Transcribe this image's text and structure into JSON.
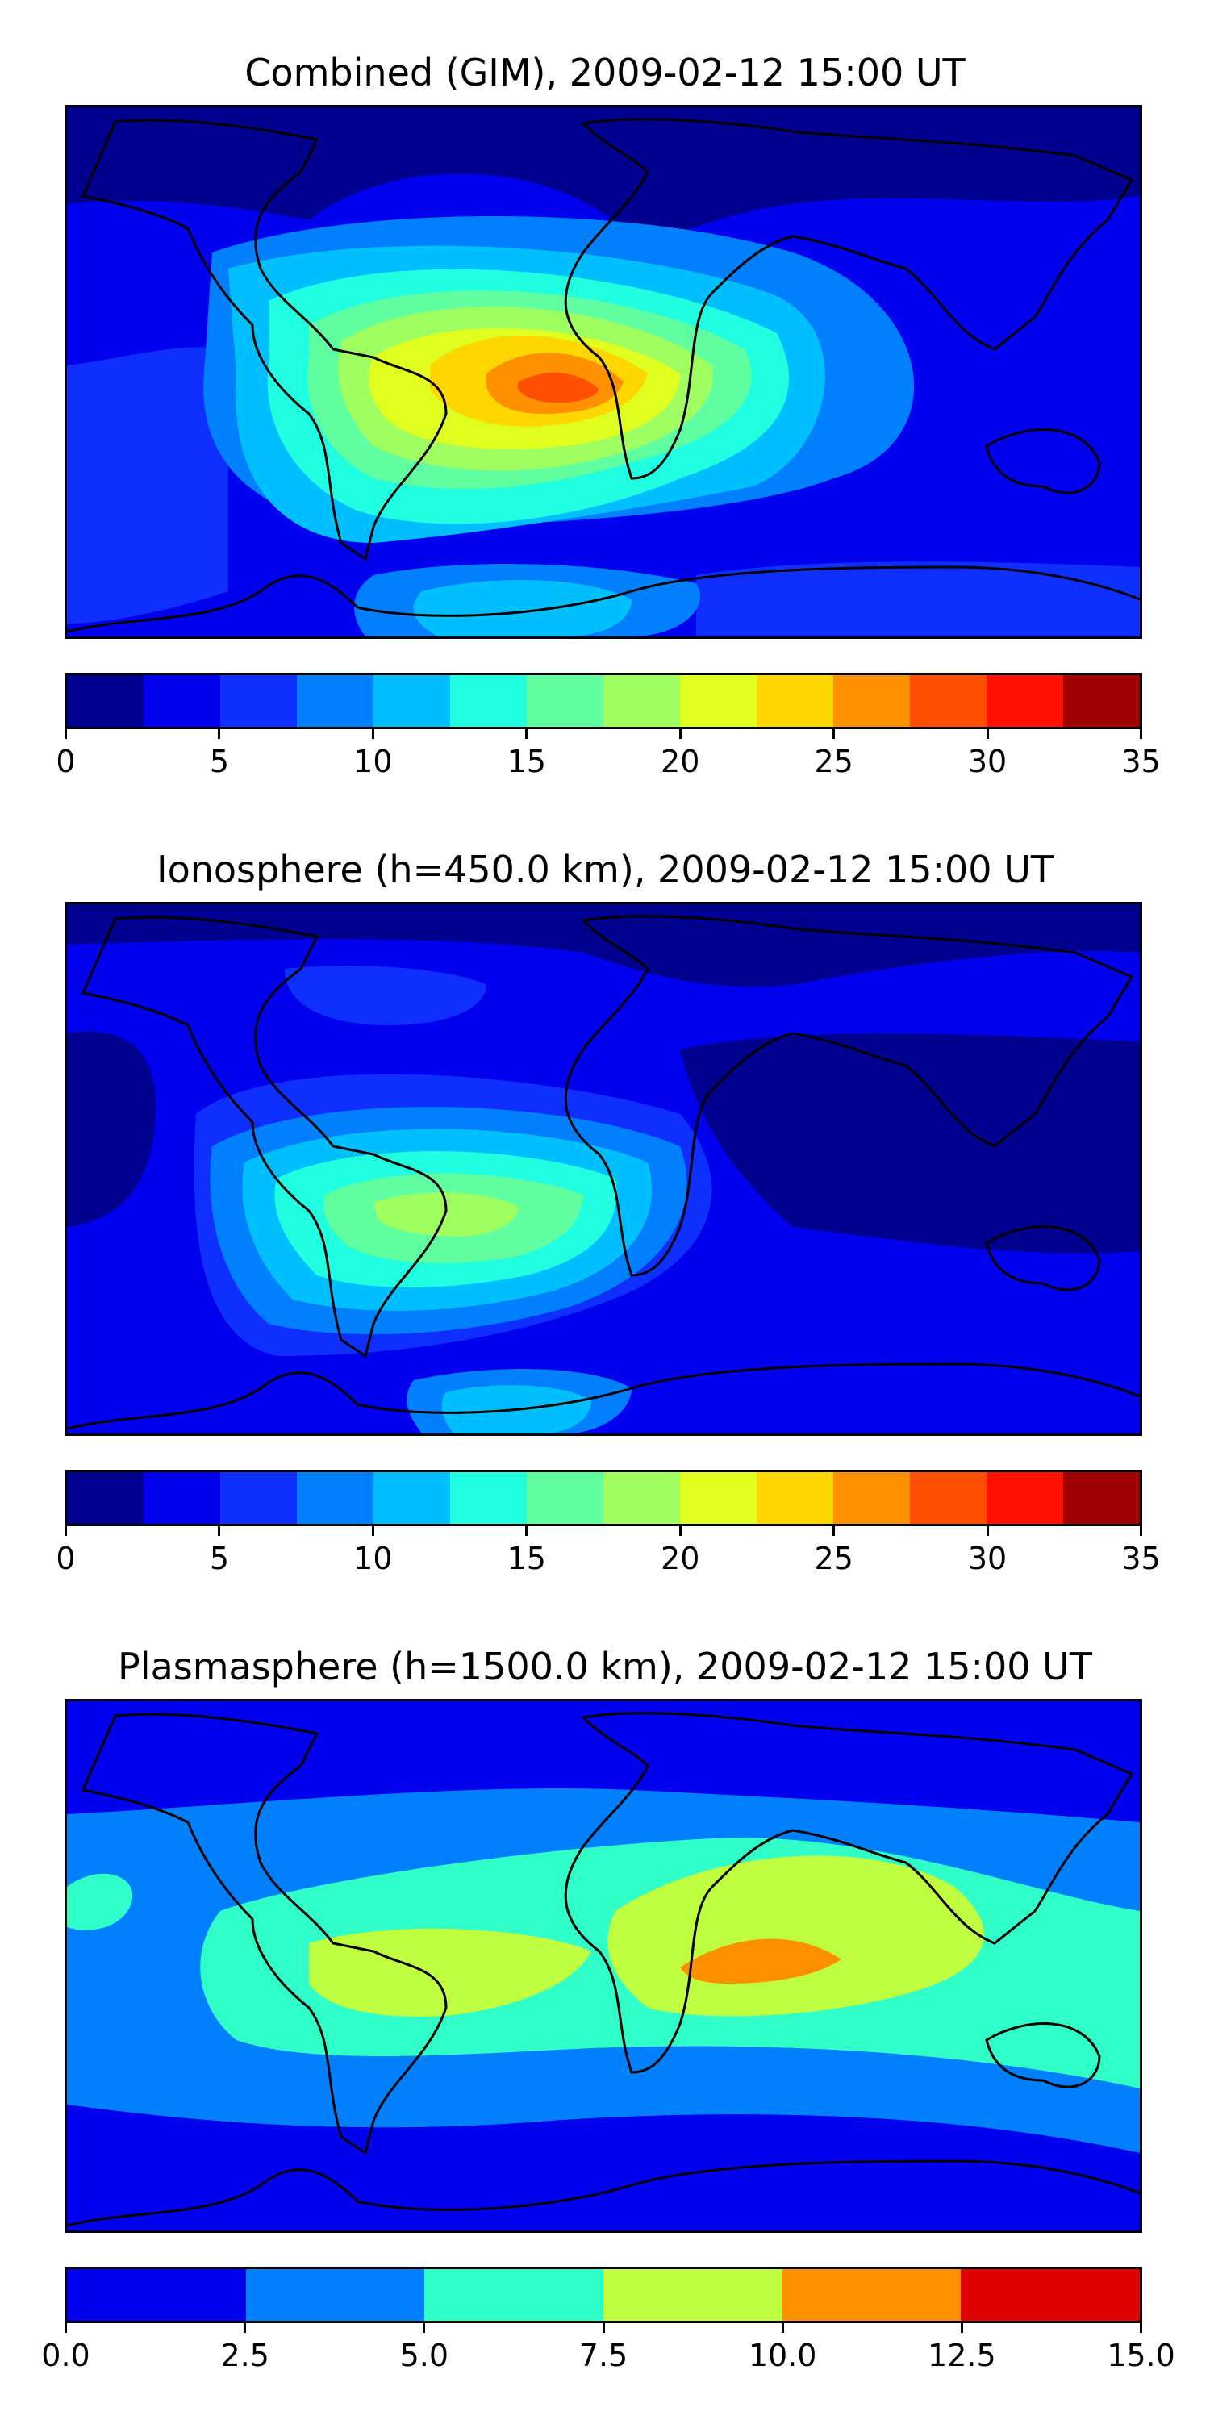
{
  "chart_data": [
    {
      "type": "heatmap",
      "title": "Combined (GIM), 2009-02-12 15:00 UT",
      "xlabel": "",
      "ylabel": "",
      "colorbar": {
        "ticks": [
          "0",
          "5",
          "10",
          "15",
          "20",
          "25",
          "30",
          "35"
        ],
        "range": [
          0,
          35
        ],
        "colors": [
          "#00008f",
          "#0000ef",
          "#0f2fff",
          "#0080ff",
          "#00bfff",
          "#20ffdf",
          "#60ff9f",
          "#9fff60",
          "#dfff20",
          "#ffd700",
          "#ff9000",
          "#ff5000",
          "#ff1000",
          "#9f0000"
        ]
      },
      "features": [
        {
          "name": "peak",
          "value": 27.5,
          "lon": -10,
          "lat": -12
        }
      ]
    },
    {
      "type": "heatmap",
      "title": "Ionosphere  (h=450.0 km), 2009-02-12 15:00 UT",
      "xlabel": "",
      "ylabel": "",
      "colorbar": {
        "ticks": [
          "0",
          "5",
          "10",
          "15",
          "20",
          "25",
          "30",
          "35"
        ],
        "range": [
          0,
          35
        ],
        "colors": [
          "#00008f",
          "#0000ef",
          "#0f2fff",
          "#0080ff",
          "#00bfff",
          "#20ffdf",
          "#60ff9f",
          "#9fff60",
          "#dfff20",
          "#ffd700",
          "#ff9000",
          "#ff5000",
          "#ff1000",
          "#9f0000"
        ]
      },
      "features": [
        {
          "name": "peak",
          "value": 17.5,
          "lon": -15,
          "lat": -18
        }
      ]
    },
    {
      "type": "heatmap",
      "title": "Plasmasphere (h=1500.0 km), 2009-02-12 15:00 UT",
      "xlabel": "",
      "ylabel": "",
      "colorbar": {
        "ticks": [
          "0.0",
          "2.5",
          "5.0",
          "7.5",
          "10.0",
          "12.5",
          "15.0"
        ],
        "range": [
          0,
          15
        ],
        "colors": [
          "#0000ef",
          "#0080ff",
          "#30ffc8",
          "#bfff3f",
          "#ff9000",
          "#df0000"
        ]
      },
      "features": [
        {
          "name": "peak",
          "value": 10.5,
          "lon": 30,
          "lat": -8
        }
      ]
    }
  ]
}
